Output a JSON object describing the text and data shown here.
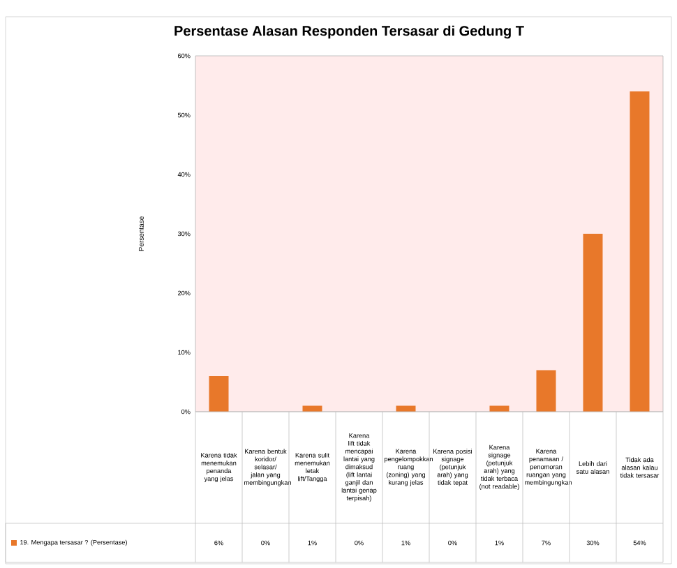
{
  "chart_data": {
    "type": "bar",
    "title": "Persentase Alasan Responden Tersasar di Gedung T",
    "ylabel": "Persentase",
    "categories": [
      "Karena tidak menemukan penanda yang jelas",
      "Karena bentuk koridor/ selasar/ jalan yang membingungkan",
      "Karena sulit menemukan letak lift/Tangga",
      "Karena lift tidak mencapai lantai yang dimaksud (lift lantai ganjil dan lantai genap terpisah)",
      "Karena pengelompokkan ruang (zoning) yang kurang jelas",
      "Karena posisi signage (petunjuk arah) yang tidak tepat",
      "Karena signage (petunjuk arah) yang tidak terbaca (not readable)",
      "Karena penamaan / penomoran ruangan yang membingungkan",
      "Lebih dari satu alasan",
      "Tidak ada alasan kalau tidak tersasar"
    ],
    "series": [
      {
        "name": "19. Mengapa tersasar ? (Persentase)",
        "color": "#e8782a",
        "values": [
          6,
          0,
          1,
          0,
          1,
          0,
          1,
          7,
          30,
          54
        ],
        "value_labels": [
          "6%",
          "0%",
          "1%",
          "0%",
          "1%",
          "0%",
          "1%",
          "7%",
          "30%",
          "54%"
        ]
      }
    ],
    "ylim": [
      0,
      60
    ],
    "yticks": [
      {
        "value": 0,
        "label": "0%"
      },
      {
        "value": 10,
        "label": "10%"
      },
      {
        "value": 20,
        "label": "20%"
      },
      {
        "value": 30,
        "label": "30%"
      },
      {
        "value": 40,
        "label": "40%"
      },
      {
        "value": 50,
        "label": "50%"
      },
      {
        "value": 60,
        "label": "60%"
      }
    ],
    "legend": "bottom"
  }
}
